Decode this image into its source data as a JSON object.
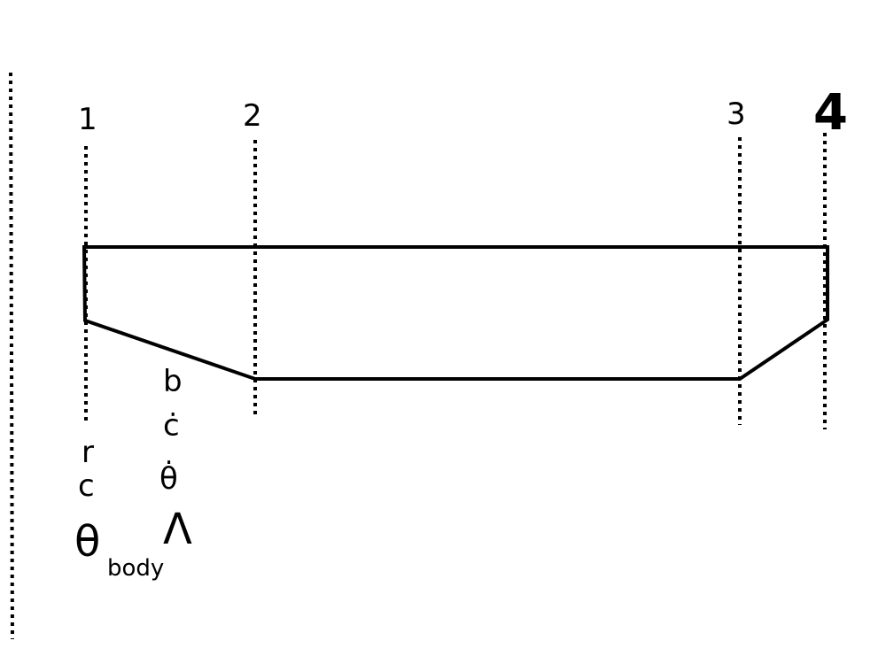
{
  "stations": [
    {
      "id": "1",
      "label": "1"
    },
    {
      "id": "2",
      "label": "2"
    },
    {
      "id": "3",
      "label": "3"
    },
    {
      "id": "4",
      "label": "4"
    }
  ],
  "annotations": {
    "b": "b",
    "c_dot": "ċ",
    "theta_dot": "θ̇",
    "lambda": "Λ",
    "r": "r",
    "c": "c",
    "theta": "θ",
    "body": "body"
  }
}
